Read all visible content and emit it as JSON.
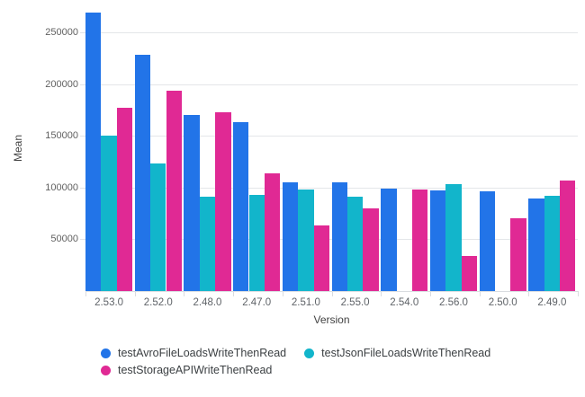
{
  "chart_data": {
    "type": "bar",
    "title": "",
    "xlabel": "Version",
    "ylabel": "Mean",
    "grid": true,
    "legend_position": "bottom",
    "ylim": [
      0,
      272000
    ],
    "y_ticks": [
      {
        "label": "50000",
        "value": 50000
      },
      {
        "label": "100000",
        "value": 100000
      },
      {
        "label": "150000",
        "value": 150000
      },
      {
        "label": "200000",
        "value": 200000
      },
      {
        "label": "250000",
        "value": 250000
      }
    ],
    "categories": [
      "2.53.0",
      "2.52.0",
      "2.48.0",
      "2.47.0",
      "2.51.0",
      "2.55.0",
      "2.54.0",
      "2.56.0",
      "2.50.0",
      "2.49.0"
    ],
    "series": [
      {
        "name": "testAvroFileLoadsWriteThenRead",
        "color": "#2274e8",
        "values": [
          269000,
          228000,
          170000,
          163000,
          105000,
          105000,
          99000,
          97000,
          96000,
          89000
        ]
      },
      {
        "name": "testJsonFileLoadsWriteThenRead",
        "color": "#12b5cb",
        "values": [
          150000,
          123000,
          91000,
          93000,
          98000,
          91000,
          null,
          103000,
          null,
          92000
        ]
      },
      {
        "name": "testStorageAPIWriteThenRead",
        "color": "#e02994",
        "values": [
          177000,
          194000,
          173000,
          114000,
          63000,
          80000,
          98000,
          34000,
          70000,
          107000
        ]
      }
    ]
  }
}
